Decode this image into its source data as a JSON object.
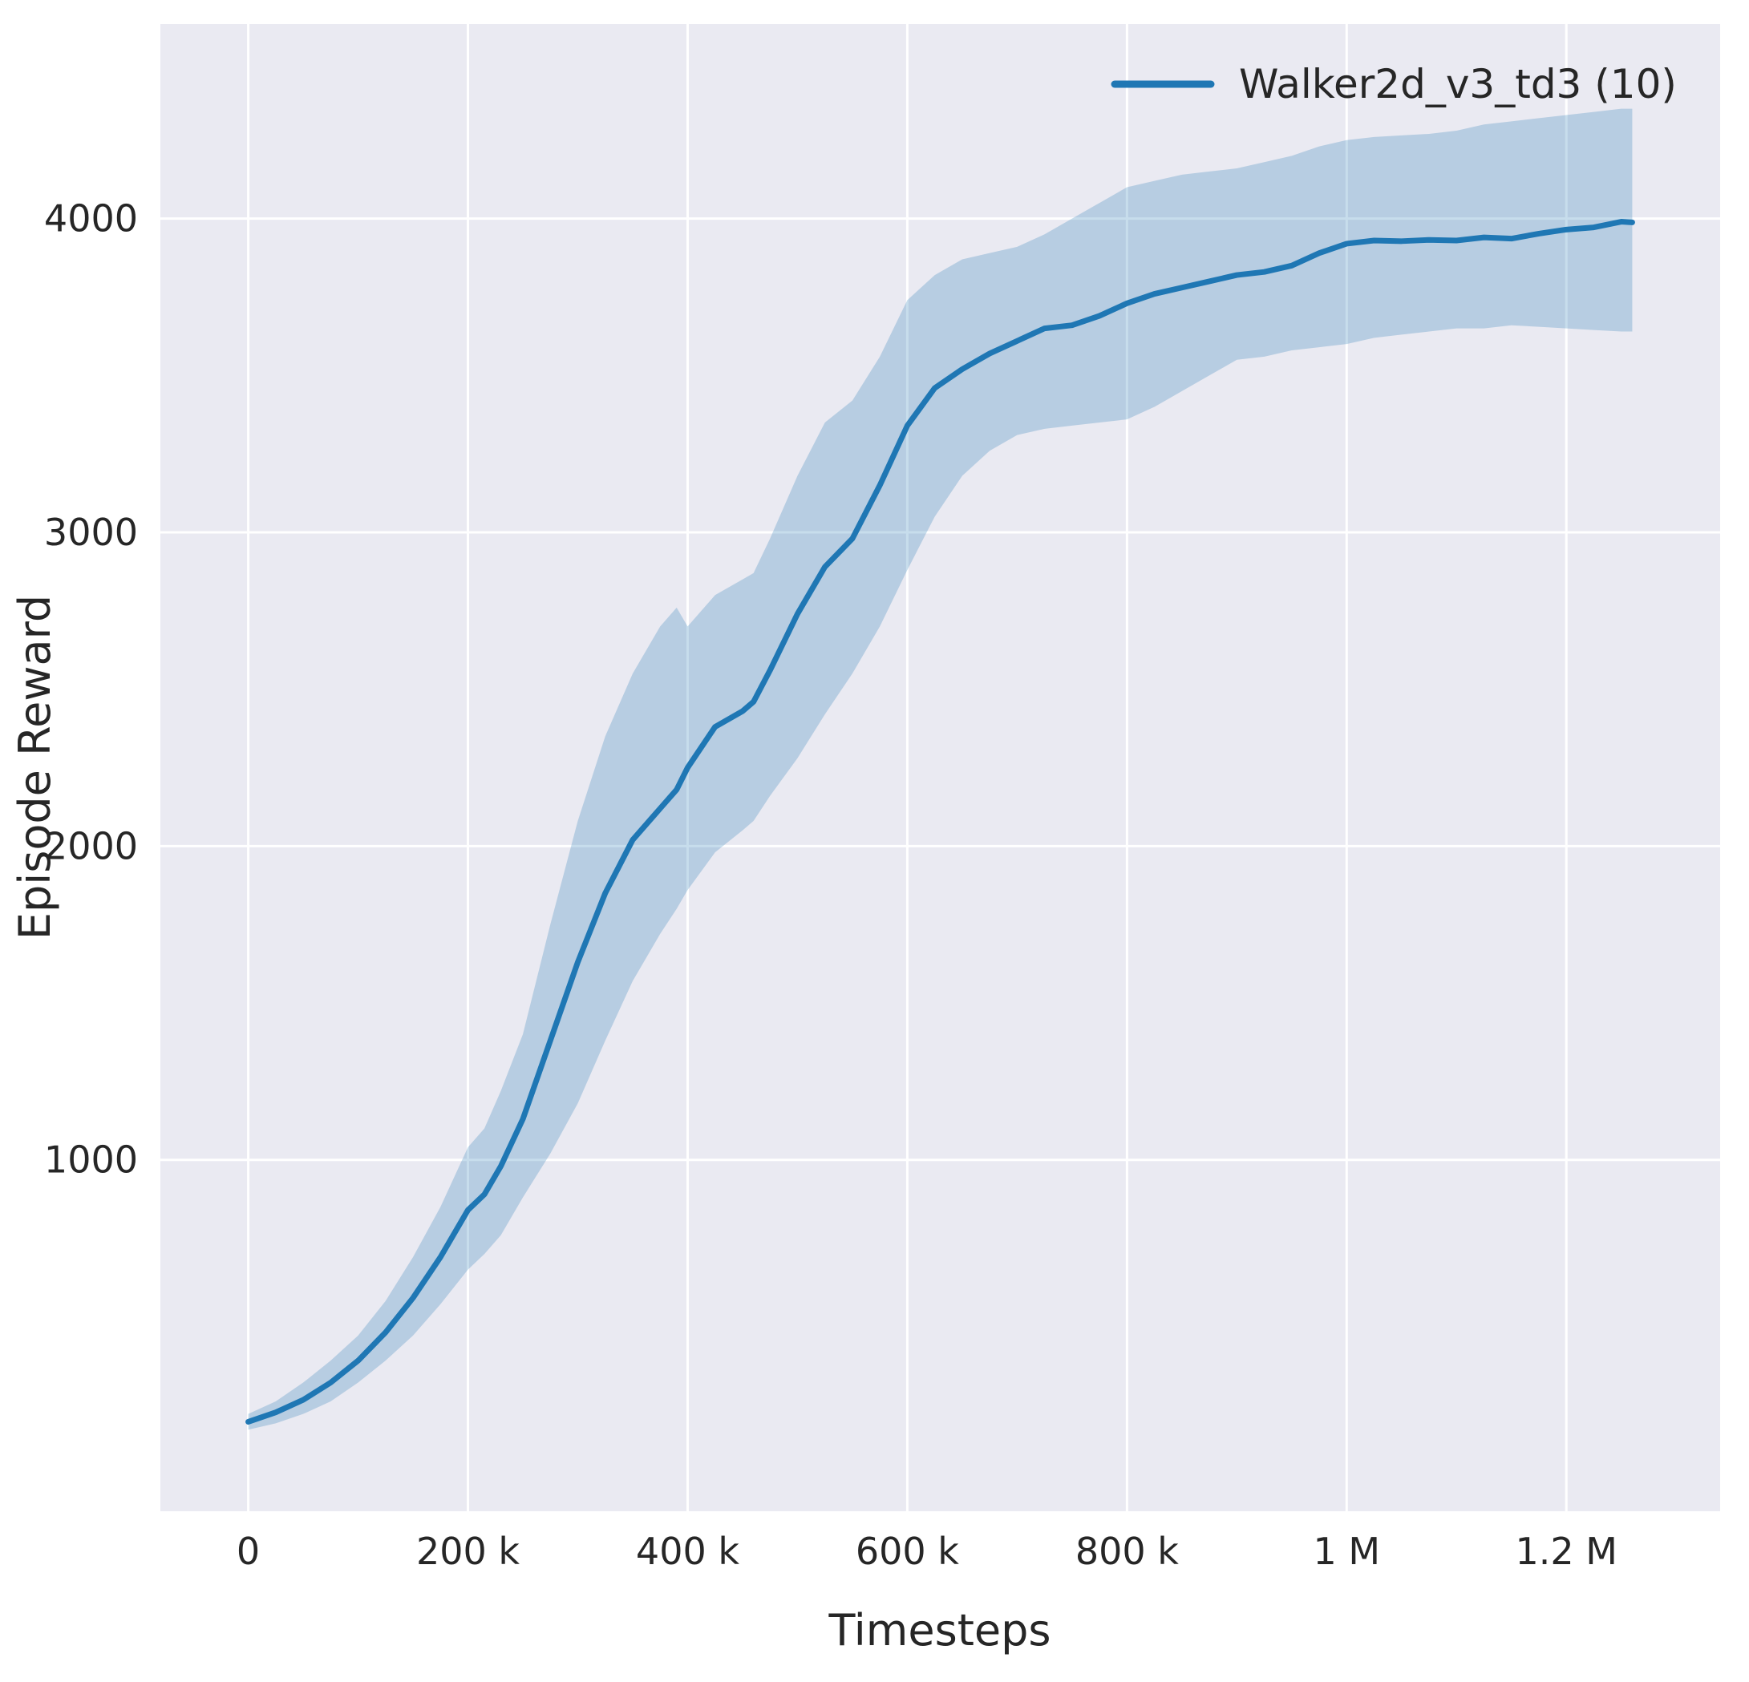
{
  "figure": {
    "background": "#ffffff",
    "plot_background": "#eaeaf2",
    "grid_color": "#ffffff",
    "text_color": "#262626"
  },
  "chart_data": {
    "type": "line",
    "title": "",
    "xlabel": "Timesteps",
    "ylabel": "Episode Reward",
    "grid": true,
    "legend_position": "upper right",
    "legend": [
      {
        "label": "Walker2d_v3_td3 (10)",
        "color": "#1f77b4"
      }
    ],
    "xlim": [
      -80000,
      1340000
    ],
    "ylim": [
      -120,
      4620
    ],
    "xticks": {
      "values": [
        0,
        200000,
        400000,
        600000,
        800000,
        1000000,
        1200000
      ],
      "labels": [
        "0",
        "200 k",
        "400 k",
        "600 k",
        "800 k",
        "1 M",
        "1.2 M"
      ]
    },
    "yticks": {
      "values": [
        1000,
        2000,
        3000,
        4000
      ],
      "labels": [
        "1000",
        "2000",
        "3000",
        "4000"
      ]
    },
    "series": [
      {
        "name": "Walker2d_v3_td3 (10)",
        "color": "#1f77b4",
        "band_opacity": 0.25,
        "line_width": 7,
        "x": [
          0,
          25000,
          50000,
          75000,
          100000,
          125000,
          150000,
          175000,
          200000,
          215000,
          230000,
          250000,
          275000,
          300000,
          325000,
          350000,
          375000,
          390000,
          400000,
          425000,
          450000,
          460000,
          475000,
          500000,
          525000,
          550000,
          575000,
          600000,
          625000,
          650000,
          675000,
          700000,
          725000,
          750000,
          775000,
          800000,
          825000,
          850000,
          875000,
          900000,
          925000,
          950000,
          975000,
          1000000,
          1025000,
          1050000,
          1075000,
          1100000,
          1125000,
          1150000,
          1175000,
          1200000,
          1225000,
          1250000,
          1260000
        ],
        "mean": [
          165,
          195,
          235,
          290,
          360,
          450,
          560,
          690,
          840,
          890,
          980,
          1130,
          1380,
          1630,
          1850,
          2020,
          2120,
          2180,
          2250,
          2380,
          2430,
          2460,
          2560,
          2740,
          2890,
          2980,
          3150,
          3340,
          3460,
          3520,
          3570,
          3610,
          3650,
          3660,
          3690,
          3730,
          3760,
          3780,
          3800,
          3820,
          3830,
          3850,
          3890,
          3920,
          3930,
          3928,
          3932,
          3930,
          3940,
          3936,
          3952,
          3965,
          3972,
          3990,
          3988
        ],
        "lower": [
          140,
          160,
          190,
          230,
          290,
          360,
          440,
          540,
          650,
          700,
          760,
          880,
          1020,
          1180,
          1380,
          1570,
          1720,
          1800,
          1860,
          1980,
          2050,
          2080,
          2160,
          2280,
          2420,
          2550,
          2700,
          2880,
          3050,
          3180,
          3260,
          3310,
          3330,
          3340,
          3350,
          3360,
          3400,
          3450,
          3500,
          3550,
          3560,
          3580,
          3590,
          3600,
          3620,
          3630,
          3640,
          3650,
          3650,
          3660,
          3655,
          3650,
          3645,
          3640,
          3640
        ],
        "upper": [
          190,
          230,
          290,
          360,
          440,
          550,
          690,
          850,
          1040,
          1100,
          1220,
          1400,
          1750,
          2080,
          2350,
          2550,
          2700,
          2760,
          2700,
          2800,
          2850,
          2870,
          2980,
          3180,
          3350,
          3420,
          3560,
          3740,
          3820,
          3870,
          3890,
          3910,
          3950,
          4000,
          4050,
          4100,
          4120,
          4140,
          4150,
          4160,
          4180,
          4200,
          4230,
          4250,
          4260,
          4265,
          4270,
          4280,
          4300,
          4310,
          4320,
          4330,
          4340,
          4350,
          4350
        ]
      }
    ]
  }
}
